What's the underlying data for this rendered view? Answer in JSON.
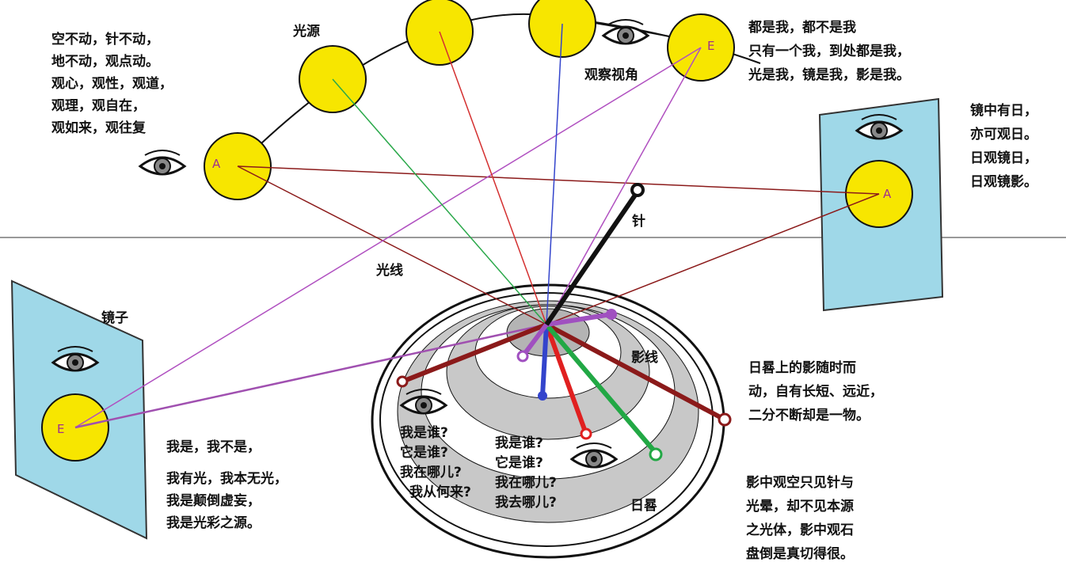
{
  "title_labels": {
    "light_source": "光源",
    "viewpoint": "观察视角",
    "needle": "针",
    "light_ray": "光线",
    "mirror": "镜子",
    "shadow_line": "影线",
    "sundial": "日晷"
  },
  "sun_labels": [
    "A",
    "E",
    "A",
    "E"
  ],
  "notes": {
    "top_left": [
      "空不动，针不动，",
      "地不动，观点动。",
      "观心，观性，观道，",
      "观理，观自在，",
      "观如来，观往复"
    ],
    "top_right": [
      "都是我，都不是我",
      "只有一个我，到处都是我，",
      "光是我，镜是我，影是我。"
    ],
    "right_mirror": [
      "镜中有日，",
      "亦可观日。",
      "日观镜日，",
      "日观镜影。"
    ],
    "right_middle": [
      "日晷上的影随时而",
      "动，自有长短、远近，",
      "二分不断却是一物。"
    ],
    "bottom_right": [
      "影中观空只见针与",
      "光晕，却不见本源",
      "之光体，影中观石",
      "盘倒是真切得很。"
    ],
    "bottom_left": [
      "我是，我不是，",
      "我有光，我本无光，",
      "我是颠倒虚妄，",
      "我是光彩之源。"
    ],
    "dial_left": [
      "我是谁?",
      "它是谁?",
      "我在哪儿?",
      "我从何来?"
    ],
    "dial_right": [
      "我是谁?",
      "它是谁?",
      "我在哪儿?",
      "我去哪儿?"
    ]
  }
}
